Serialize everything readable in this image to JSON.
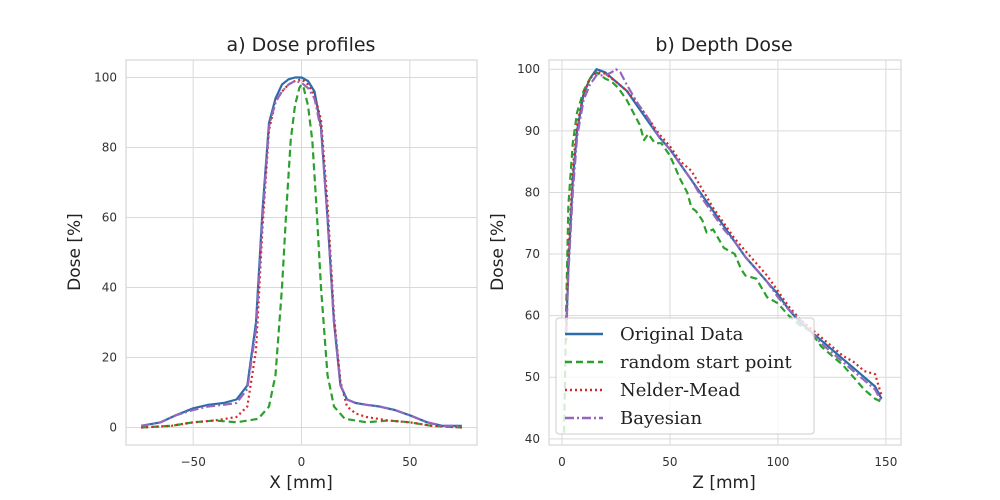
{
  "chart_data": [
    {
      "type": "line",
      "title": "a) Dose profiles",
      "xlabel": "X [mm]",
      "ylabel": "Dose [%]",
      "xlim": [
        -81,
        81
      ],
      "ylim": [
        -5,
        105
      ],
      "xticks": [
        -50,
        0,
        50
      ],
      "xtick_labels": [
        "−50",
        "0",
        "50"
      ],
      "yticks": [
        0,
        20,
        40,
        60,
        80,
        100
      ],
      "ytick_labels": [
        "0",
        "20",
        "40",
        "60",
        "80",
        "100"
      ],
      "grid": true,
      "series": [
        {
          "name": "Original Data",
          "color": "#2b6ca9",
          "dash": "solid",
          "x": [
            -74,
            -65,
            -58,
            -50,
            -43,
            -36,
            -30,
            -25,
            -21,
            -18,
            -15,
            -12,
            -9,
            -6,
            -3,
            0,
            3,
            6,
            9,
            12,
            15,
            18,
            21,
            25,
            30,
            36,
            43,
            50,
            58,
            65,
            74
          ],
          "y": [
            0.5,
            1.5,
            3.5,
            5.5,
            6.5,
            7,
            8,
            12,
            30,
            62,
            87,
            94,
            98,
            99.5,
            100,
            100,
            99,
            96,
            86,
            60,
            30,
            12,
            8,
            7,
            6.5,
            6,
            5,
            3.5,
            1.5,
            0.5,
            0.5
          ]
        },
        {
          "name": "random start point",
          "color": "#2ca02c",
          "dash": "7,4",
          "x": [
            -74,
            -60,
            -50,
            -40,
            -30,
            -20,
            -15,
            -12,
            -9,
            -7,
            -5,
            -3,
            -1,
            0,
            1,
            3,
            5,
            7,
            9,
            12,
            15,
            20,
            30,
            40,
            50,
            60,
            74
          ],
          "y": [
            0,
            0.5,
            1.5,
            2,
            1.5,
            2.5,
            6,
            15,
            40,
            62,
            82,
            92,
            97,
            98,
            97,
            92,
            82,
            62,
            40,
            15,
            6,
            2.5,
            1.5,
            2,
            1.5,
            0.5,
            0
          ],
          "label_note": ""
        },
        {
          "name": "Nelder-Mead",
          "color": "#d62728",
          "dash": "2,3",
          "x": [
            -74,
            -60,
            -50,
            -40,
            -30,
            -25,
            -21,
            -18,
            -15,
            -12,
            -9,
            -6,
            -3,
            0,
            3,
            6,
            9,
            12,
            15,
            18,
            21,
            25,
            30,
            40,
            50,
            60,
            74
          ],
          "y": [
            0,
            0.5,
            1.5,
            2,
            3,
            6,
            22,
            57,
            85,
            93,
            96,
            98,
            99,
            99.5,
            98,
            95,
            88,
            64,
            32,
            13,
            6,
            4,
            3,
            2,
            1.5,
            0.5,
            0
          ]
        },
        {
          "name": "Bayesian",
          "color": "#9467bd",
          "dash": "9,3,2,3",
          "x": [
            -74,
            -65,
            -58,
            -50,
            -43,
            -36,
            -30,
            -25,
            -21,
            -18,
            -15,
            -12,
            -9,
            -6,
            -3,
            0,
            3,
            6,
            9,
            12,
            15,
            18,
            21,
            25,
            30,
            36,
            43,
            50,
            58,
            65,
            74
          ],
          "y": [
            0.5,
            1.5,
            3.5,
            5,
            6,
            6.5,
            7,
            11,
            28,
            60,
            86,
            93,
            96,
            98,
            99,
            98.5,
            97,
            94,
            85,
            60,
            30,
            12,
            8,
            7,
            6.5,
            6,
            5,
            3.5,
            1.5,
            0.5,
            0.5
          ]
        }
      ]
    },
    {
      "type": "line",
      "title": "b) Depth Dose",
      "xlabel": "Z [mm]",
      "ylabel": "Dose [%]",
      "xlim": [
        -6,
        157
      ],
      "ylim": [
        39,
        101.5
      ],
      "xticks": [
        0,
        50,
        100,
        150
      ],
      "xtick_labels": [
        "0",
        "50",
        "100",
        "150"
      ],
      "yticks": [
        40,
        50,
        60,
        70,
        80,
        90,
        100
      ],
      "ytick_labels": [
        "40",
        "50",
        "60",
        "70",
        "80",
        "90",
        "100"
      ],
      "grid": true,
      "legend": {
        "position": "lower-left",
        "entries": [
          "Original Data",
          "random start point",
          "Nelder-Mead",
          "Bayesian"
        ]
      },
      "series": [
        {
          "name": "Original Data",
          "color": "#2b6ca9",
          "dash": "solid",
          "x": [
            2,
            3,
            5,
            7,
            10,
            13,
            16,
            20,
            25,
            30,
            35,
            40,
            45,
            50,
            55,
            60,
            65,
            70,
            75,
            80,
            85,
            90,
            95,
            100,
            105,
            110,
            115,
            120,
            125,
            130,
            135,
            140,
            145,
            148
          ],
          "y": [
            58,
            68,
            82,
            90,
            96,
            98.5,
            100,
            99.5,
            98,
            96.5,
            94,
            91.5,
            89,
            87,
            84.5,
            82,
            79.5,
            77,
            74.5,
            72,
            69.5,
            67.5,
            65.5,
            63.5,
            61,
            59,
            57.5,
            56,
            54.5,
            53,
            51.5,
            50,
            48.5,
            46.5
          ]
        },
        {
          "name": "random start point",
          "color": "#2ca02c",
          "dash": "7,4",
          "x": [
            1,
            2,
            3,
            5,
            7,
            10,
            13,
            16,
            20,
            23,
            26,
            30,
            33,
            36,
            38,
            40,
            43,
            46,
            50,
            55,
            58,
            60,
            62,
            65,
            67,
            70,
            75,
            80,
            83,
            85,
            90,
            95,
            100,
            105,
            110,
            115,
            120,
            125,
            130,
            135,
            140,
            145,
            148
          ],
          "y": [
            41,
            62,
            78,
            88,
            93,
            96.5,
            98.5,
            99.5,
            98.5,
            98,
            97,
            95,
            93,
            91,
            88.5,
            89.5,
            88,
            88,
            86,
            82,
            80,
            77.5,
            77,
            75.5,
            73.5,
            74,
            71,
            70,
            67.5,
            66.5,
            66,
            63,
            62,
            60,
            58.5,
            57.5,
            55,
            53.5,
            52,
            50,
            48,
            46.5,
            46
          ]
        },
        {
          "name": "Nelder-Mead",
          "color": "#d62728",
          "dash": "2,3",
          "x": [
            2,
            3,
            5,
            7,
            10,
            13,
            16,
            20,
            25,
            30,
            35,
            40,
            45,
            50,
            55,
            60,
            65,
            70,
            75,
            80,
            85,
            90,
            95,
            100,
            105,
            110,
            115,
            120,
            125,
            130,
            135,
            140,
            145,
            148
          ],
          "y": [
            56,
            70,
            84,
            91,
            96,
            98.5,
            99.5,
            99.3,
            98,
            96.5,
            94.5,
            92,
            89.5,
            87.5,
            85,
            83.5,
            80.5,
            77.5,
            75,
            72.5,
            70.5,
            68.5,
            66.5,
            64,
            61.5,
            59.5,
            58,
            56.5,
            55,
            53.5,
            52.5,
            51,
            50.5,
            47
          ]
        },
        {
          "name": "Bayesian",
          "color": "#9467bd",
          "dash": "9,3,2,3",
          "x": [
            2,
            3,
            5,
            7,
            10,
            13,
            16,
            20,
            23,
            25,
            27,
            30,
            35,
            40,
            45,
            50,
            55,
            60,
            65,
            70,
            75,
            80,
            85,
            90,
            95,
            100,
            105,
            110,
            115,
            120,
            125,
            130,
            135,
            140,
            145,
            148
          ],
          "y": [
            57,
            67,
            80,
            89,
            95,
            97.5,
            99,
            99,
            99.5,
            100,
            99.5,
            97.5,
            94.5,
            92,
            89,
            87,
            84.5,
            82,
            79,
            76.5,
            74,
            72,
            69.5,
            67.5,
            65.5,
            63,
            61,
            59.5,
            57.5,
            55.5,
            54,
            52.5,
            51,
            49.5,
            48,
            46
          ]
        }
      ]
    }
  ]
}
